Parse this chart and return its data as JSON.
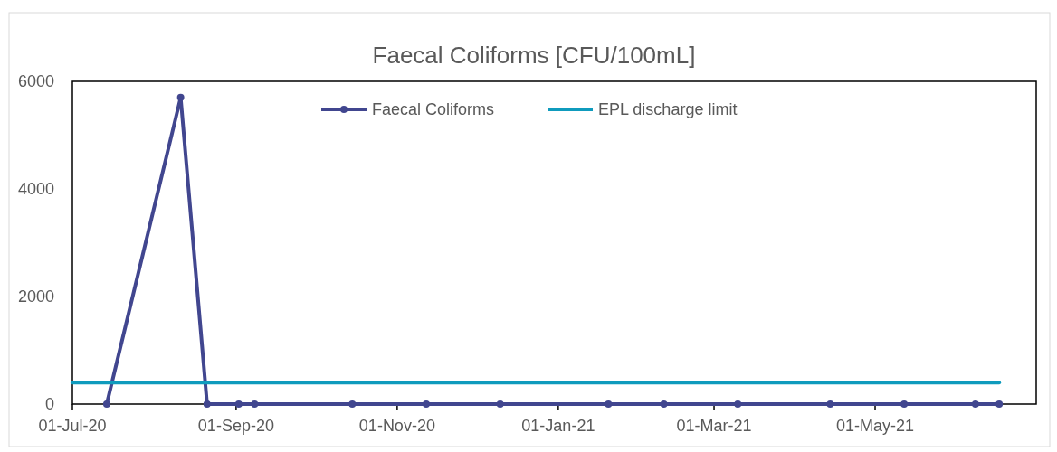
{
  "chart_data": {
    "type": "line",
    "title": "Faecal Coliforms [CFU/100mL]",
    "series": [
      {
        "name": "Faecal Coliforms",
        "color": "#41468f",
        "marker": "circle",
        "x": [
          "2020-07-14",
          "2020-08-11",
          "2020-08-21",
          "2020-09-02",
          "2020-09-08",
          "2020-10-15",
          "2020-11-12",
          "2020-12-10",
          "2021-01-20",
          "2021-02-10",
          "2021-03-10",
          "2021-04-14",
          "2021-05-12",
          "2021-06-08",
          "2021-06-17"
        ],
        "values": [
          0,
          5700,
          0,
          0,
          0,
          0,
          0,
          0,
          0,
          0,
          0,
          0,
          0,
          0,
          0
        ]
      },
      {
        "name": "EPL discharge limit",
        "color": "#0f9bbd",
        "marker": "none",
        "x": [
          "2020-07-01",
          "2021-06-17"
        ],
        "values": [
          400,
          400
        ]
      }
    ],
    "xlim": [
      "2020-07-01",
      "2021-07-01"
    ],
    "xticks": [
      {
        "value": "2020-07-01",
        "label": "01-Jul-20"
      },
      {
        "value": "2020-09-01",
        "label": "01-Sep-20"
      },
      {
        "value": "2020-11-01",
        "label": "01-Nov-20"
      },
      {
        "value": "2021-01-01",
        "label": "01-Jan-21"
      },
      {
        "value": "2021-03-01",
        "label": "01-Mar-21"
      },
      {
        "value": "2021-05-01",
        "label": "01-May-21"
      }
    ],
    "ylim": [
      0,
      6000
    ],
    "yticks": [
      0,
      2000,
      4000,
      6000
    ],
    "grid": false,
    "legend": "top"
  }
}
